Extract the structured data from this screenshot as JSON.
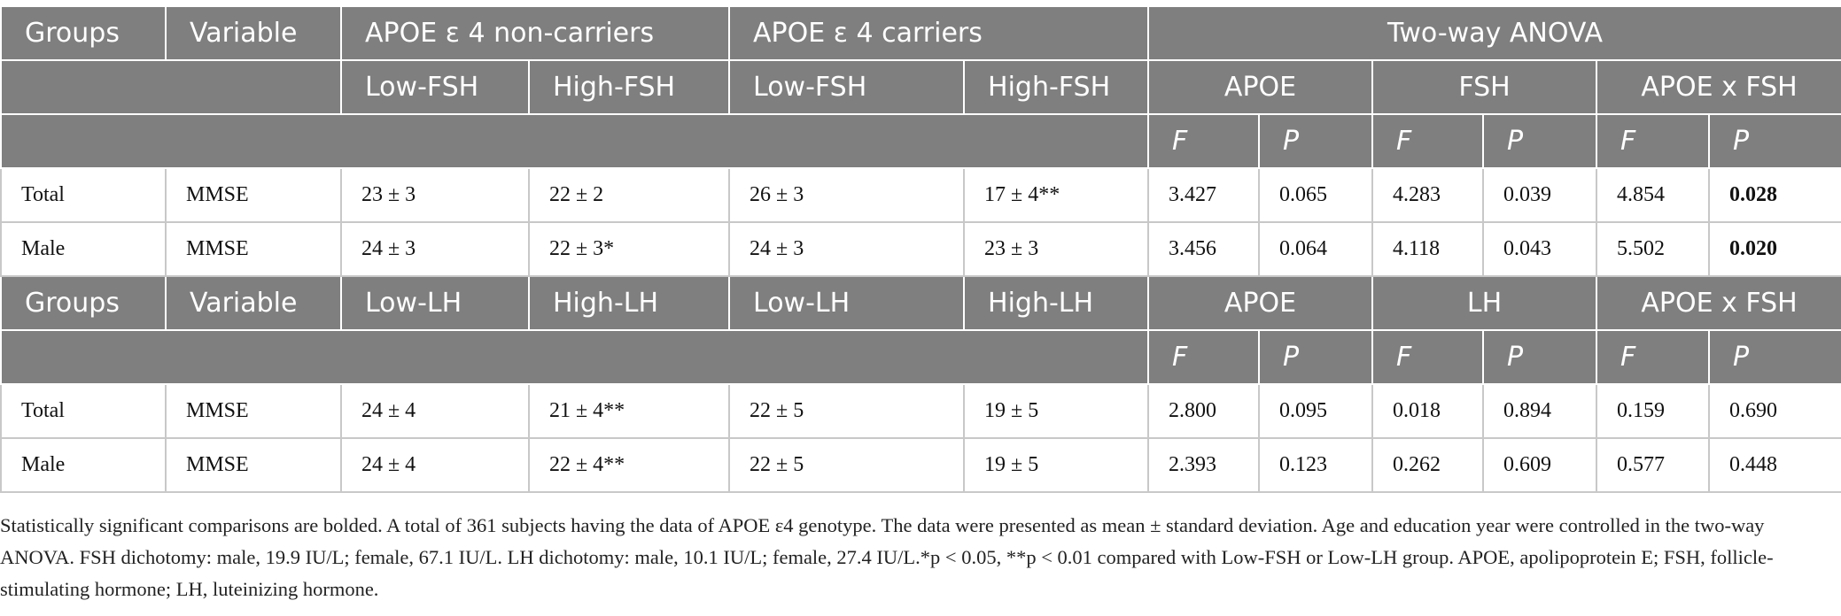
{
  "table": {
    "header": [
      "Groups",
      "Variable",
      "APOE ε 4 non-carriers",
      "APOE ε 4 carriers",
      "Two-way ANOVA"
    ],
    "subheader": [
      "Low-FSH",
      "High-FSH",
      "Low-FSH",
      "High-FSH",
      "APOE",
      "FSH",
      "APOE x FSH"
    ],
    "stat_header": [
      "F",
      "P",
      "F",
      "P",
      "F",
      "P"
    ],
    "rows": [
      [
        "Total",
        "MMSE",
        "23 ± 3",
        "22 ± 2",
        "26 ± 3",
        "17 ± 4**",
        "3.427",
        "0.065",
        "4.283",
        "0.039",
        "4.854",
        "0.028"
      ],
      [
        "Male",
        "MMSE",
        "24 ± 3",
        "22 ± 3*",
        "24 ± 3",
        "23 ± 3",
        "3.456",
        "0.064",
        "4.118",
        "0.043",
        "5.502",
        "0.020"
      ]
    ],
    "header2": [
      "Groups",
      "Variable",
      "Low-LH",
      "High-LH",
      "Low-LH",
      "High-LH",
      "APOE",
      "LH",
      "APOE x FSH"
    ],
    "stat_header2": [
      "F",
      "P",
      "F",
      "P",
      "F",
      "P"
    ],
    "rows2": [
      [
        "Total",
        "MMSE",
        "24 ± 4",
        "21 ± 4**",
        "22 ± 5",
        "19 ± 5",
        "2.800",
        "0.095",
        "0.018",
        "0.894",
        "0.159",
        "0.690"
      ],
      [
        "Male",
        "MMSE",
        "24 ± 4",
        "22 ± 4**",
        "22 ± 5",
        "19 ± 5",
        "2.393",
        "0.123",
        "0.262",
        "0.609",
        "0.577",
        "0.448"
      ]
    ]
  },
  "footnote": "Statistically significant comparisons are bolded. A total of 361 subjects having the data of APOE ε4 genotype. The data were presented as mean ± standard deviation. Age and education year were controlled in the two-way ANOVA. FSH dichotomy: male, 19.9 IU/L; female, 67.1 IU/L. LH dichotomy: male, 10.1 IU/L; female, 27.4 IU/L.*p < 0.05, **p < 0.01 compared with Low-FSH or Low-LH group. APOE, apolipoprotein E; FSH, follicle-stimulating hormone; LH, luteinizing hormone."
}
